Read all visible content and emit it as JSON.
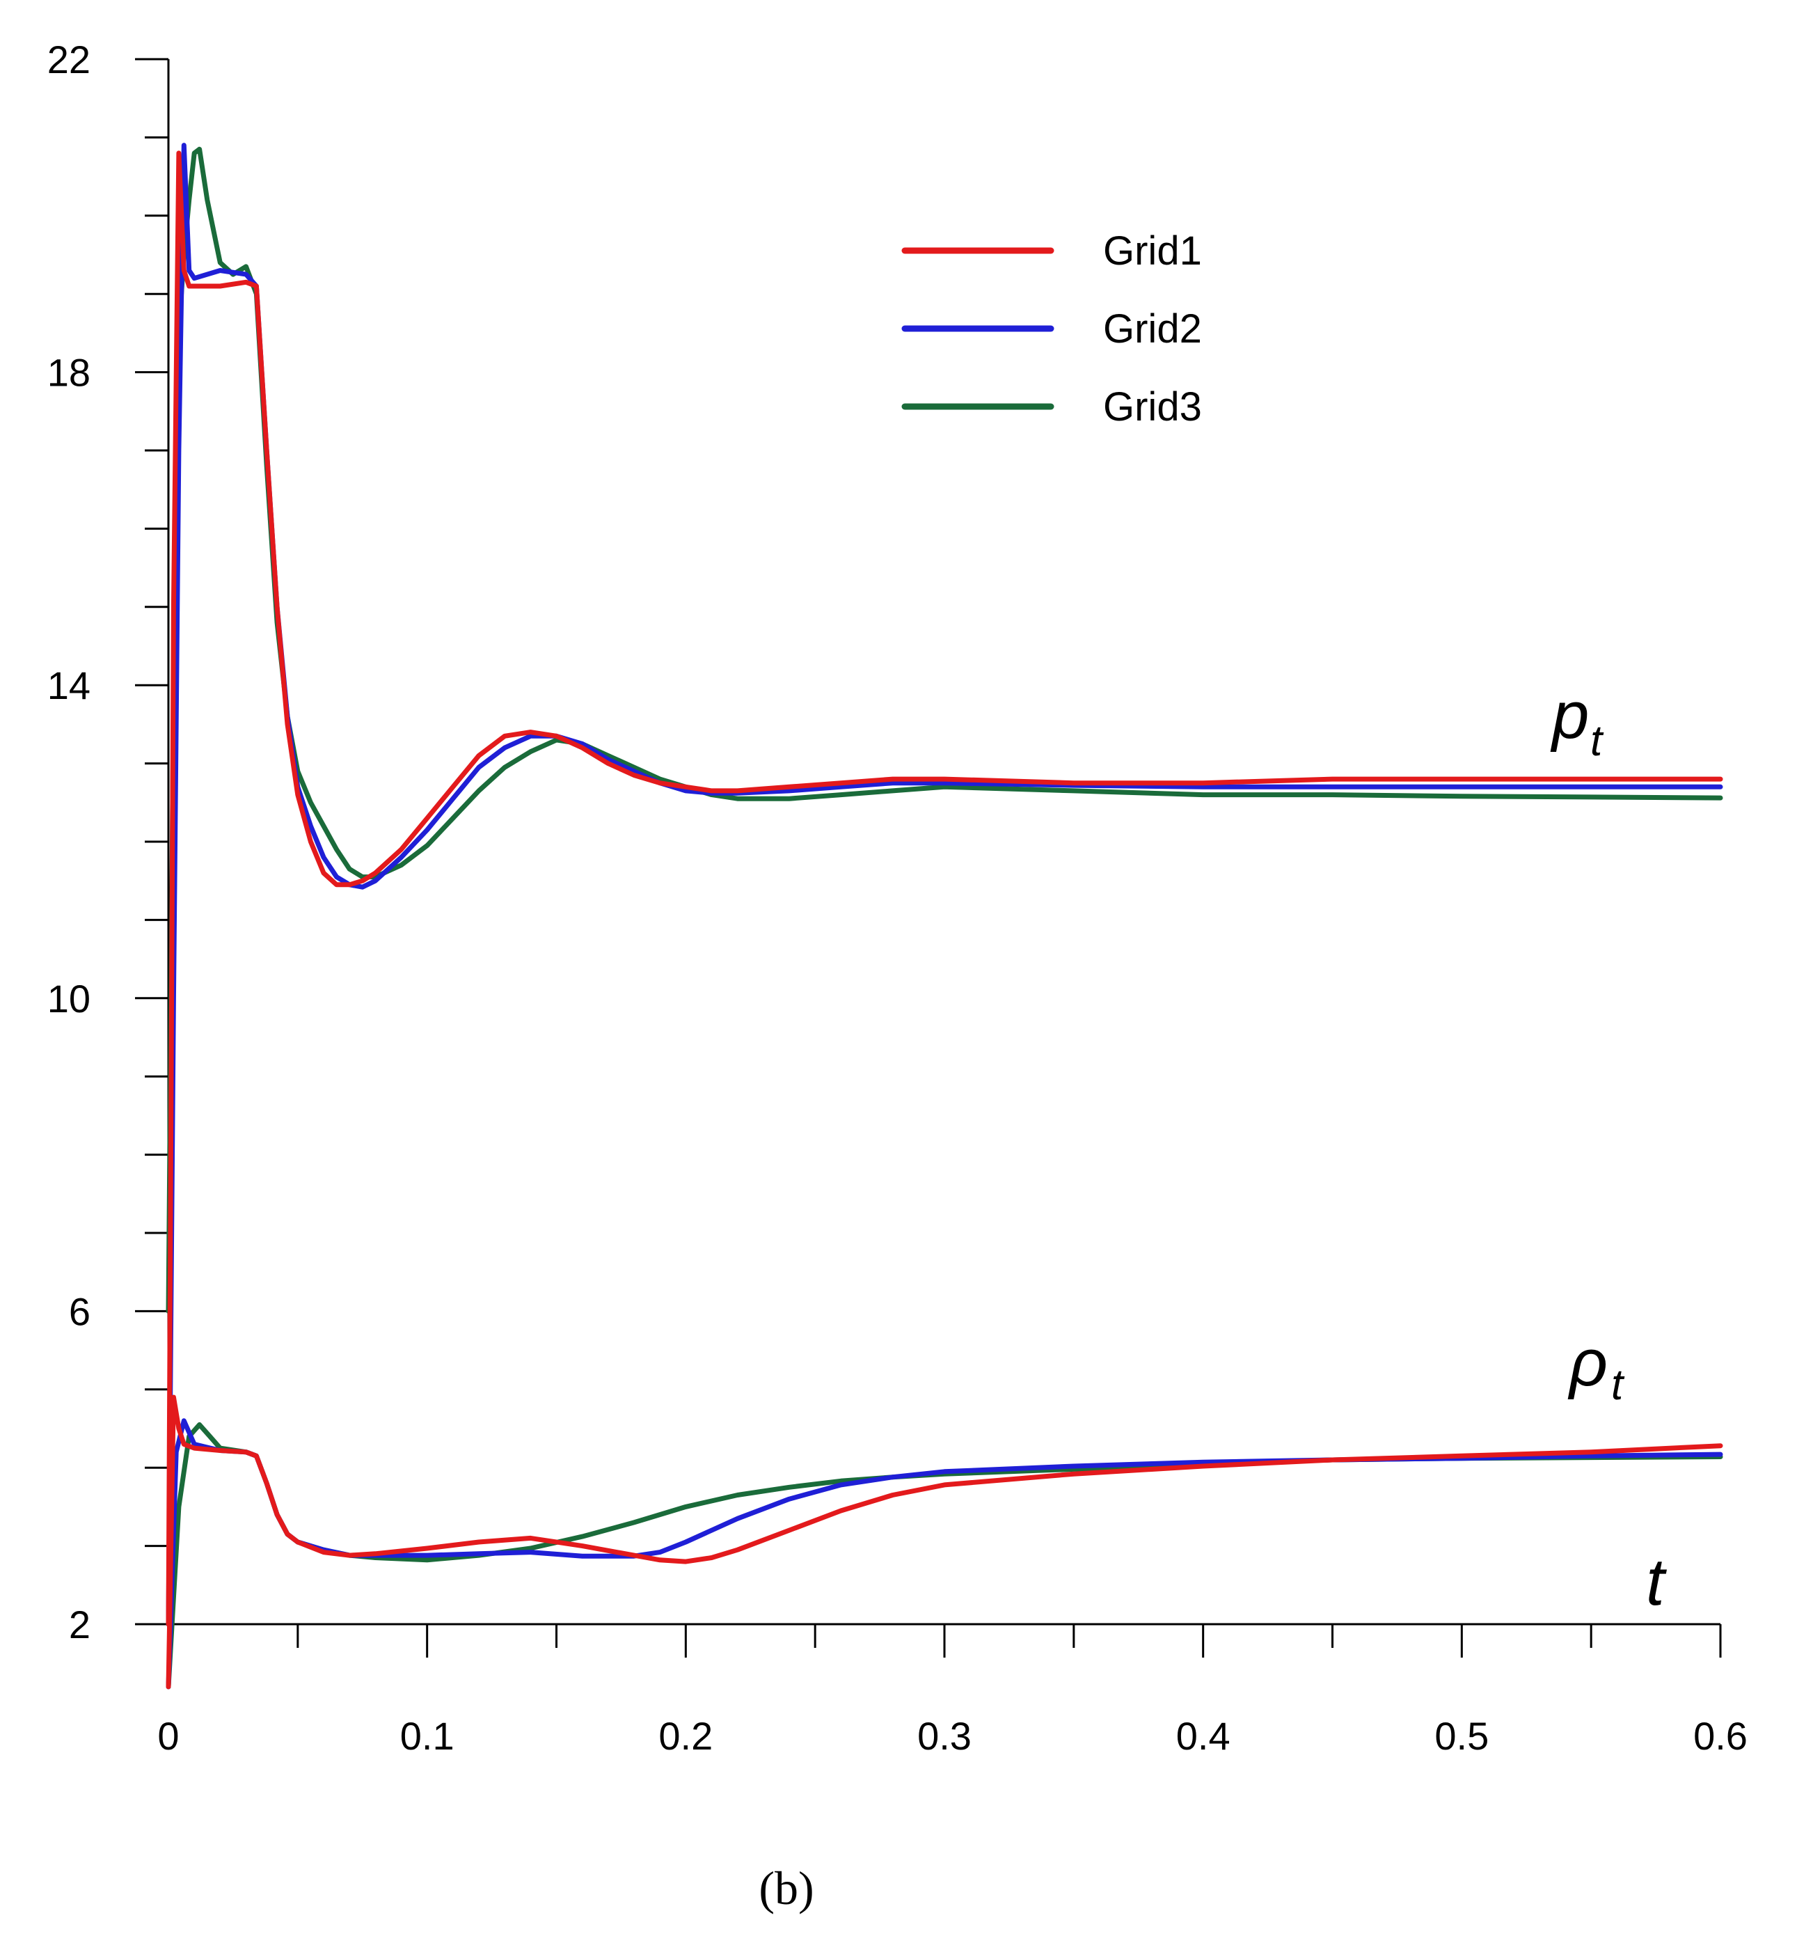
{
  "chart_data": {
    "type": "line",
    "title": "",
    "xlabel": "t",
    "ylabel": "",
    "xlim": [
      0,
      0.6
    ],
    "ylim": [
      2,
      22
    ],
    "x_ticks": [
      "0",
      "0.1",
      "0.2",
      "0.3",
      "0.4",
      "0.5",
      "0.6"
    ],
    "y_ticks": [
      "2",
      "6",
      "10",
      "14",
      "18",
      "22"
    ],
    "legend_position": "top-right",
    "caption": "(b)",
    "curve_labels": [
      {
        "id": "pt",
        "main": "p",
        "sub": "t"
      },
      {
        "id": "rhot",
        "main": "ρ",
        "sub": "t"
      }
    ],
    "series": [
      {
        "name": "Grid1",
        "color": "#e31a1c",
        "pt": {
          "x": [
            0,
            0.002,
            0.004,
            0.006,
            0.008,
            0.01,
            0.02,
            0.03,
            0.034,
            0.038,
            0.042,
            0.046,
            0.05,
            0.055,
            0.06,
            0.065,
            0.07,
            0.075,
            0.08,
            0.09,
            0.1,
            0.11,
            0.12,
            0.13,
            0.14,
            0.15,
            0.16,
            0.17,
            0.18,
            0.19,
            0.2,
            0.21,
            0.22,
            0.24,
            0.26,
            0.28,
            0.3,
            0.35,
            0.4,
            0.45,
            0.5,
            0.55,
            0.6
          ],
          "y": [
            2,
            15,
            20.8,
            19.3,
            19.1,
            19.1,
            19.1,
            19.15,
            19.1,
            17,
            15,
            13.5,
            12.6,
            12,
            11.6,
            11.45,
            11.45,
            11.5,
            11.6,
            11.9,
            12.3,
            12.7,
            13.1,
            13.35,
            13.4,
            13.35,
            13.2,
            13.0,
            12.85,
            12.75,
            12.7,
            12.65,
            12.65,
            12.7,
            12.75,
            12.8,
            12.8,
            12.75,
            12.75,
            12.8,
            12.8,
            12.8,
            12.8
          ]
        },
        "rho": {
          "x": [
            0,
            0.002,
            0.004,
            0.006,
            0.01,
            0.02,
            0.03,
            0.034,
            0.038,
            0.042,
            0.046,
            0.05,
            0.06,
            0.07,
            0.08,
            0.1,
            0.12,
            0.14,
            0.16,
            0.18,
            0.19,
            0.2,
            0.21,
            0.22,
            0.24,
            0.26,
            0.28,
            0.3,
            0.35,
            0.4,
            0.45,
            0.5,
            0.55,
            0.6
          ],
          "y": [
            1.2,
            4.9,
            4.5,
            4.3,
            4.25,
            4.22,
            4.2,
            4.15,
            3.8,
            3.4,
            3.15,
            3.05,
            2.92,
            2.88,
            2.9,
            2.97,
            3.05,
            3.1,
            3.0,
            2.88,
            2.82,
            2.8,
            2.85,
            2.95,
            3.2,
            3.45,
            3.65,
            3.78,
            3.92,
            4.02,
            4.1,
            4.15,
            4.2,
            4.28
          ]
        }
      },
      {
        "name": "Grid2",
        "color": "#1f1fd6",
        "pt": {
          "x": [
            0,
            0.002,
            0.004,
            0.006,
            0.008,
            0.01,
            0.02,
            0.03,
            0.034,
            0.038,
            0.042,
            0.046,
            0.05,
            0.055,
            0.06,
            0.065,
            0.07,
            0.075,
            0.08,
            0.09,
            0.1,
            0.11,
            0.12,
            0.13,
            0.14,
            0.15,
            0.16,
            0.17,
            0.18,
            0.19,
            0.2,
            0.21,
            0.22,
            0.24,
            0.26,
            0.28,
            0.3,
            0.35,
            0.4,
            0.45,
            0.5,
            0.55,
            0.6
          ],
          "y": [
            2,
            10,
            17,
            20.9,
            19.3,
            19.2,
            19.3,
            19.25,
            19.1,
            17,
            15,
            13.6,
            12.7,
            12.2,
            11.8,
            11.55,
            11.45,
            11.42,
            11.5,
            11.8,
            12.15,
            12.55,
            12.95,
            13.2,
            13.35,
            13.35,
            13.25,
            13.05,
            12.9,
            12.75,
            12.65,
            12.62,
            12.62,
            12.65,
            12.7,
            12.75,
            12.75,
            12.72,
            12.7,
            12.7,
            12.7,
            12.7,
            12.7
          ]
        },
        "rho": {
          "x": [
            0,
            0.003,
            0.006,
            0.01,
            0.02,
            0.03,
            0.034,
            0.038,
            0.042,
            0.046,
            0.05,
            0.06,
            0.07,
            0.08,
            0.1,
            0.12,
            0.14,
            0.16,
            0.18,
            0.19,
            0.2,
            0.22,
            0.24,
            0.26,
            0.28,
            0.3,
            0.35,
            0.4,
            0.45,
            0.5,
            0.55,
            0.6
          ],
          "y": [
            1.2,
            4.2,
            4.6,
            4.3,
            4.22,
            4.2,
            4.15,
            3.8,
            3.4,
            3.15,
            3.05,
            2.95,
            2.88,
            2.88,
            2.88,
            2.9,
            2.92,
            2.87,
            2.87,
            2.92,
            3.05,
            3.35,
            3.6,
            3.78,
            3.88,
            3.95,
            4.02,
            4.07,
            4.1,
            4.12,
            4.15,
            4.17
          ]
        }
      },
      {
        "name": "Grid3",
        "color": "#1a6b3a",
        "pt": {
          "x": [
            0,
            0.002,
            0.004,
            0.006,
            0.008,
            0.01,
            0.012,
            0.015,
            0.02,
            0.025,
            0.03,
            0.034,
            0.038,
            0.042,
            0.046,
            0.05,
            0.055,
            0.06,
            0.065,
            0.07,
            0.075,
            0.08,
            0.09,
            0.1,
            0.11,
            0.12,
            0.13,
            0.14,
            0.15,
            0.16,
            0.17,
            0.18,
            0.19,
            0.2,
            0.21,
            0.22,
            0.24,
            0.26,
            0.28,
            0.3,
            0.35,
            0.4,
            0.45,
            0.5,
            0.55,
            0.6
          ],
          "y": [
            6,
            14,
            18.5,
            19.5,
            20.2,
            20.8,
            20.85,
            20.2,
            19.4,
            19.25,
            19.35,
            19.0,
            16.8,
            14.8,
            13.6,
            12.9,
            12.5,
            12.2,
            11.9,
            11.65,
            11.55,
            11.55,
            11.7,
            11.95,
            12.3,
            12.65,
            12.95,
            13.15,
            13.3,
            13.25,
            13.1,
            12.95,
            12.8,
            12.7,
            12.6,
            12.55,
            12.55,
            12.6,
            12.65,
            12.7,
            12.65,
            12.6,
            12.6,
            12.58,
            12.57,
            12.56
          ]
        },
        "rho": {
          "x": [
            0,
            0.004,
            0.008,
            0.012,
            0.016,
            0.02,
            0.03,
            0.034,
            0.038,
            0.042,
            0.046,
            0.05,
            0.06,
            0.07,
            0.08,
            0.1,
            0.12,
            0.14,
            0.16,
            0.18,
            0.2,
            0.22,
            0.24,
            0.26,
            0.28,
            0.3,
            0.35,
            0.4,
            0.45,
            0.5,
            0.55,
            0.6
          ],
          "y": [
            1.2,
            3.5,
            4.4,
            4.55,
            4.4,
            4.25,
            4.2,
            4.15,
            3.8,
            3.4,
            3.15,
            3.05,
            2.95,
            2.88,
            2.85,
            2.82,
            2.88,
            2.97,
            3.12,
            3.3,
            3.5,
            3.65,
            3.75,
            3.83,
            3.88,
            3.92,
            3.98,
            4.05,
            4.1,
            4.12,
            4.13,
            4.14
          ]
        }
      }
    ]
  }
}
